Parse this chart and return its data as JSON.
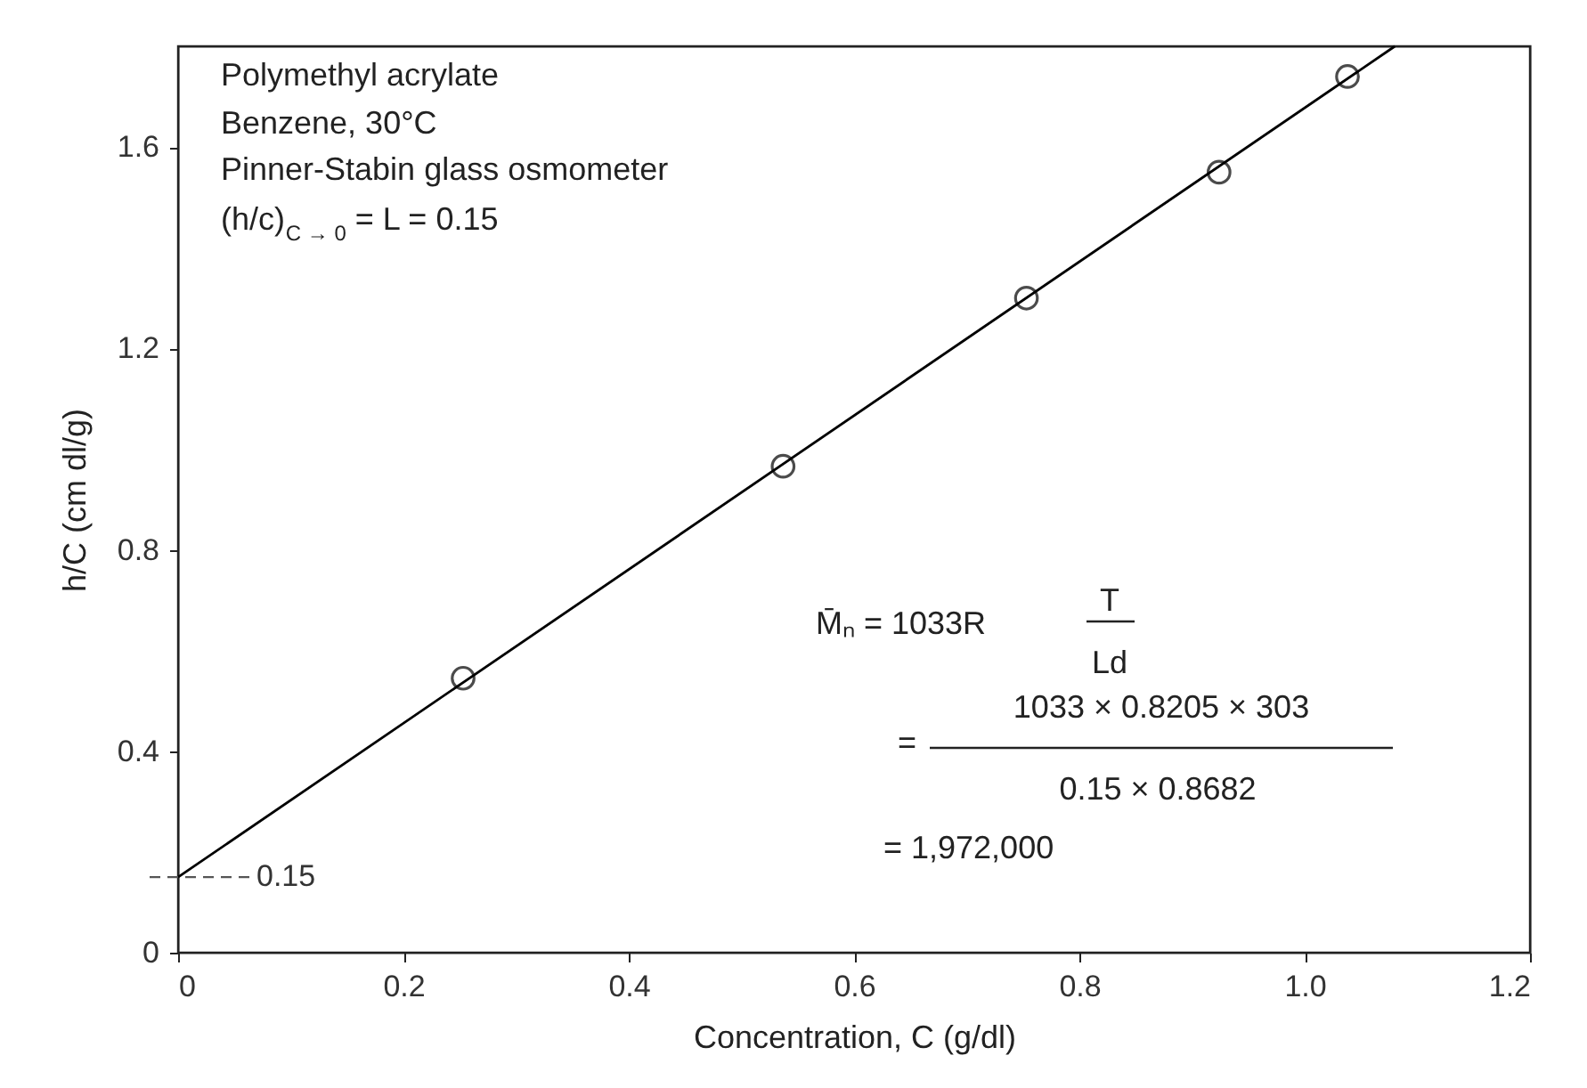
{
  "chart_data": {
    "type": "scatter",
    "xlabel": "Concentration, C (g/dl)",
    "ylabel": "h/C (cm dl/g)",
    "xlim": [
      0,
      1.2
    ],
    "ylim": [
      0,
      1.8
    ],
    "xticks": [
      0,
      0.2,
      0.4,
      0.6,
      0.8,
      {
        "value": 1,
        "label": "1.0"
      },
      1.2
    ],
    "yticks": [
      0,
      0.4,
      0.8,
      1.2,
      1.6
    ],
    "grid": false,
    "series": [
      {
        "color": "#000000",
        "marker": "circle",
        "x": [
          0.253,
          0.537,
          0.753,
          0.924,
          1.038
        ],
        "values": [
          0.545,
          0.966,
          1.3,
          1.55,
          1.74
        ]
      },
      {
        "type": "line",
        "color": "#000000",
        "line_style": "solid",
        "x": [
          0,
          1.08
        ],
        "values": [
          0.15,
          1.8
        ]
      }
    ],
    "ref_lines": [
      {
        "axis": "y",
        "value": 0.15,
        "label": "0.15",
        "line_style": "dashed",
        "color": "#555555"
      }
    ],
    "annotations": [
      "Polymethyl acrylate",
      "Benzene, 30°C",
      "Pinner-Stabin glass osmometer",
      "(h/c)$_{C → 0}$ = L = 0.15",
      "M̄ₙ = 1033R",
      "T",
      "Ld",
      "=",
      "1033 × 0.8205 × 303",
      "0.15 × 0.8682",
      "= 1,972,000"
    ]
  }
}
